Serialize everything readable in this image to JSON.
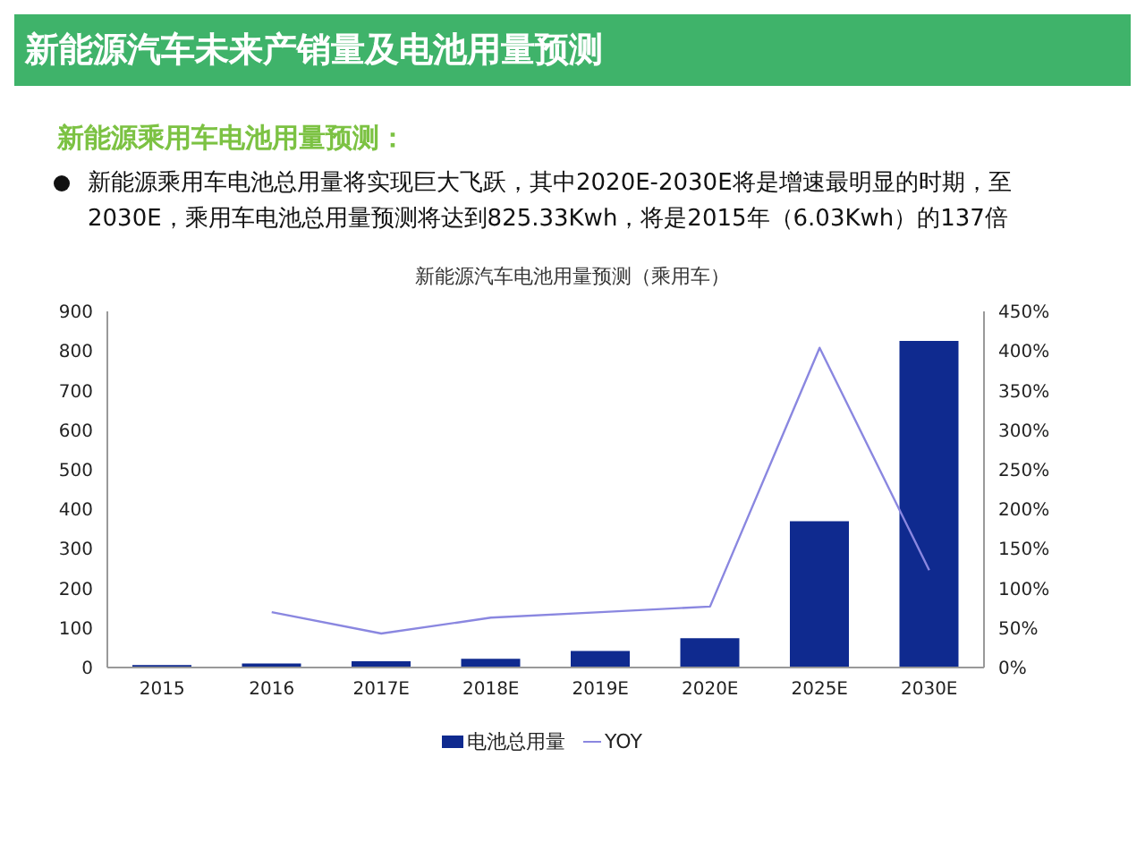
{
  "chart_data": {
    "type": "bar",
    "title": "新能源汽车未来产销量及电池用量预测",
    "subtitle": "新能源乘用车电池用量预测：",
    "annotations": [
      "新能源乘用车电池总用量将实现巨大飞跃，其中2020E-2030E将是增速最明显的时期，至2030E，乘用车电池总用量预测将达到825.33Kwh，将是2015年（6.03Kwh）的137倍",
      "新能源汽车电池用量预测（乘用车）"
    ],
    "categories": [
      "2015",
      "2016",
      "2017E",
      "2018E",
      "2019E",
      "2020E",
      "2025E",
      "2030E"
    ],
    "series": [
      {
        "name": "电池总用量",
        "color": "#0f2a8f",
        "values": [
          6.03,
          10,
          16,
          22,
          42,
          74,
          370,
          825.33
        ]
      },
      {
        "name": "YOY",
        "type": "line",
        "axis": "y2",
        "color": "#8a87e0",
        "values": [
          null,
          70,
          43,
          63,
          70,
          77,
          404,
          123
        ]
      }
    ],
    "ylim": [
      0,
      900
    ],
    "yticks": [
      0,
      100,
      200,
      300,
      400,
      500,
      600,
      700,
      800,
      900
    ],
    "y2lim": [
      0,
      450
    ],
    "y2ticks": [
      {
        "value": 0,
        "label": "0%"
      },
      {
        "value": 50,
        "label": "50%"
      },
      {
        "value": 100,
        "label": "100%"
      },
      {
        "value": 150,
        "label": "150%"
      },
      {
        "value": 200,
        "label": "200%"
      },
      {
        "value": 250,
        "label": "250%"
      },
      {
        "value": 300,
        "label": "300%"
      },
      {
        "value": 350,
        "label": "350%"
      },
      {
        "value": 400,
        "label": "400%"
      },
      {
        "value": 450,
        "label": "450%"
      }
    ],
    "legend": "bottom",
    "marker": "none",
    "line_style": "solid"
  }
}
